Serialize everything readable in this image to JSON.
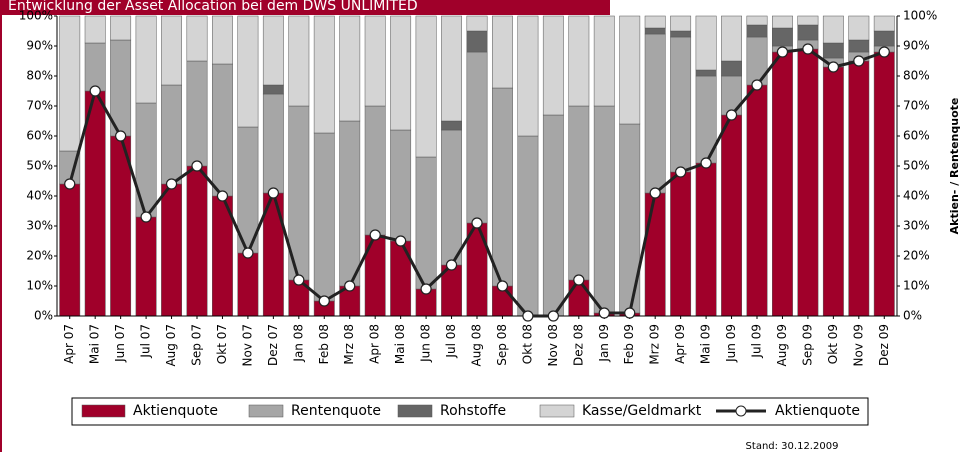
{
  "chart_data": {
    "type": "bar",
    "stacked": true,
    "title": "Entwicklung der Asset Allocation bei dem DWS UNLIMITED",
    "y2_label": "Aktien- / Rentenquote",
    "footnote": "Stand: 30.12.2009",
    "categories": [
      "Apr 07",
      "Mai 07",
      "Jun 07",
      "Jul 07",
      "Aug 07",
      "Sep 07",
      "Okt 07",
      "Nov 07",
      "Dez 07",
      "Jan 08",
      "Feb 08",
      "Mrz 08",
      "Apr 08",
      "Mai 08",
      "Jun 08",
      "Jul 08",
      "Aug 08",
      "Sep 08",
      "Okt 08",
      "Nov 08",
      "Dez 08",
      "Jan 09",
      "Feb 09",
      "Mrz 09",
      "Apr 09",
      "Mai 09",
      "Jun 09",
      "Jul 09",
      "Aug 09",
      "Sep 09",
      "Okt 09",
      "Nov 09",
      "Dez 09"
    ],
    "series": [
      {
        "name": "Aktienquote",
        "color": "#a0002a",
        "values": [
          44,
          75,
          60,
          33,
          44,
          50,
          40,
          21,
          41,
          12,
          5,
          10,
          27,
          25,
          9,
          17,
          31,
          10,
          0,
          0,
          12,
          1,
          1,
          41,
          48,
          51,
          67,
          77,
          88,
          89,
          83,
          85,
          88
        ]
      },
      {
        "name": "Rentenquote",
        "color": "#a6a6a6",
        "values": [
          11,
          16,
          32,
          38,
          33,
          35,
          44,
          42,
          33,
          58,
          56,
          55,
          43,
          37,
          44,
          45,
          57,
          66,
          60,
          67,
          58,
          69,
          63,
          53,
          45,
          29,
          13,
          16,
          2,
          3,
          3,
          3,
          2
        ]
      },
      {
        "name": "Rohstoffe",
        "color": "#666666",
        "values": [
          0,
          0,
          0,
          0,
          0,
          0,
          0,
          0,
          3,
          0,
          0,
          0,
          0,
          0,
          0,
          3,
          7,
          0,
          0,
          0,
          0,
          0,
          0,
          2,
          2,
          2,
          5,
          4,
          6,
          5,
          5,
          4,
          5
        ]
      },
      {
        "name": "Kasse/Geldmarkt",
        "color": "#d4d4d4",
        "values": [
          45,
          9,
          8,
          29,
          23,
          15,
          16,
          37,
          23,
          30,
          39,
          35,
          30,
          38,
          47,
          35,
          5,
          24,
          40,
          33,
          30,
          30,
          36,
          4,
          5,
          18,
          15,
          3,
          4,
          3,
          9,
          8,
          5
        ]
      },
      {
        "name": "Aktienquote",
        "type": "line",
        "color": "#222222",
        "values": [
          44,
          75,
          60,
          33,
          44,
          50,
          40,
          21,
          41,
          12,
          5,
          10,
          27,
          25,
          9,
          17,
          31,
          10,
          0,
          0,
          12,
          1,
          1,
          41,
          48,
          51,
          67,
          77,
          88,
          89,
          83,
          85,
          88
        ]
      }
    ],
    "ylim": [
      0,
      100
    ],
    "yticks": [
      {
        "value": 0,
        "label": "0%"
      },
      {
        "value": 10,
        "label": "10%"
      },
      {
        "value": 20,
        "label": "20%"
      },
      {
        "value": 30,
        "label": "30%"
      },
      {
        "value": 40,
        "label": "40%"
      },
      {
        "value": 50,
        "label": "50%"
      },
      {
        "value": 60,
        "label": "60%"
      },
      {
        "value": 70,
        "label": "70%"
      },
      {
        "value": 80,
        "label": "80%"
      },
      {
        "value": 90,
        "label": "90%"
      },
      {
        "value": 100,
        "label": "100%"
      }
    ],
    "y2lim": [
      0,
      100
    ],
    "y2ticks": [
      {
        "value": 0,
        "label": "0%"
      },
      {
        "value": 10,
        "label": "10%"
      },
      {
        "value": 20,
        "label": "20%"
      },
      {
        "value": 30,
        "label": "30%"
      },
      {
        "value": 40,
        "label": "40%"
      },
      {
        "value": 50,
        "label": "50%"
      },
      {
        "value": 60,
        "label": "60%"
      },
      {
        "value": 70,
        "label": "70%"
      },
      {
        "value": 80,
        "label": "80%"
      },
      {
        "value": 90,
        "label": "90%"
      },
      {
        "value": 100,
        "label": "100%"
      }
    ],
    "legend": "bottom"
  }
}
